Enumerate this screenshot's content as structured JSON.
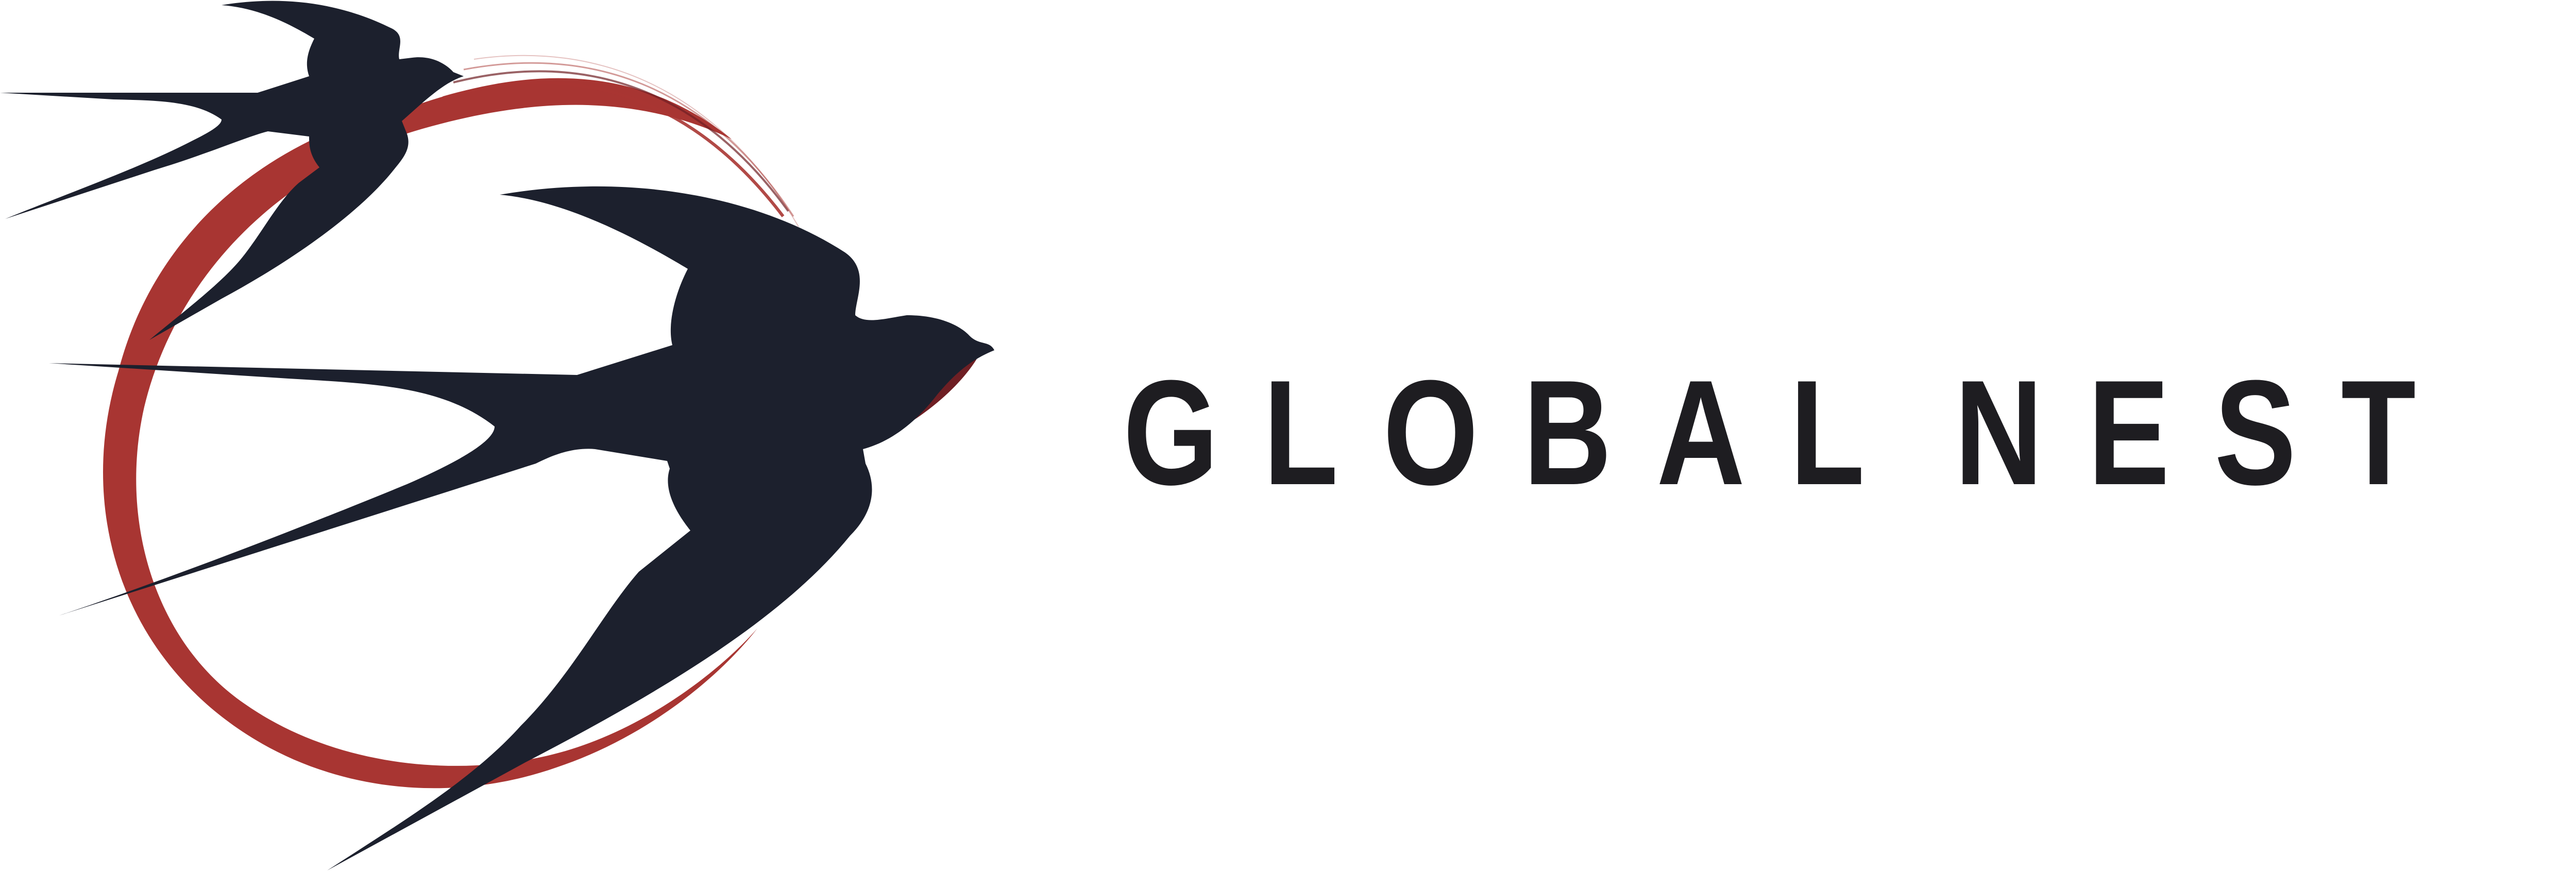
{
  "brand": {
    "name_letters": [
      "G",
      "L",
      "O",
      "B",
      "A",
      "L",
      " ",
      "N",
      "E",
      "S",
      "T"
    ],
    "colors": {
      "ring": "#a83532",
      "ring_dark": "#6f1f24",
      "birds": "#1c202d",
      "text": "#1e1d21",
      "background": "#ffffff"
    },
    "logo_icon": "swallows-circling-ring"
  }
}
